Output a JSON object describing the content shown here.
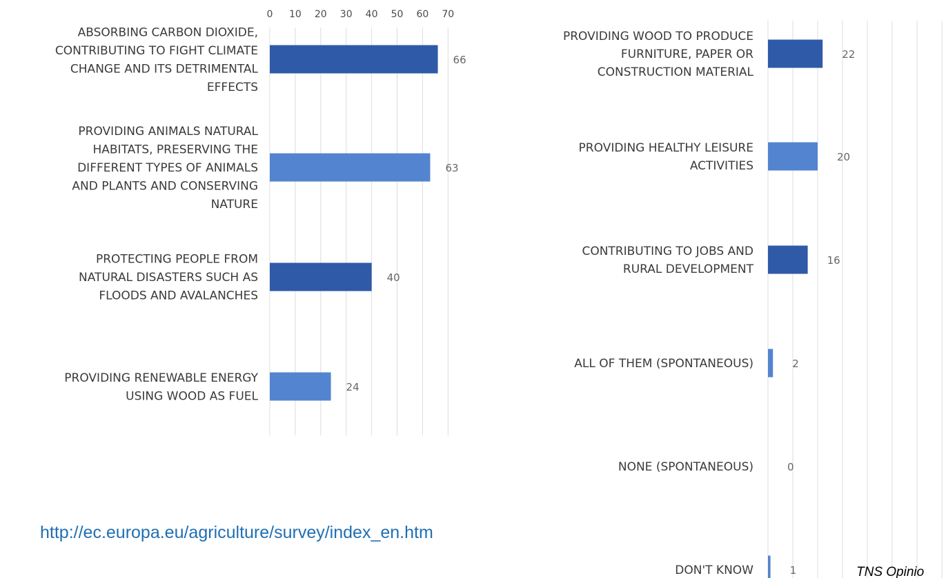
{
  "colors": {
    "dark_blue": "#2f5aa8",
    "light_blue": "#5384cf",
    "grid": "#dcdcdc"
  },
  "footer": {
    "url": "http://ec.europa.eu/agriculture/survey/index_en.htm",
    "credit": "TNS Opinio"
  },
  "chart_data": [
    {
      "type": "bar",
      "orientation": "horizontal",
      "title": "",
      "xlabel": "",
      "ylabel": "",
      "xlim": [
        0,
        70
      ],
      "x_ticks": [
        "0",
        "10",
        "20",
        "30",
        "40",
        "50",
        "60",
        "70"
      ],
      "grid": true,
      "categories": [
        [
          "ABSORBING CARBON DIOXIDE,",
          "CONTRIBUTING TO FIGHT CLIMATE",
          "CHANGE AND ITS DETRIMENTAL",
          "EFFECTS"
        ],
        [
          "PROVIDING ANIMALS NATURAL",
          "HABITATS, PRESERVING THE",
          "DIFFERENT TYPES OF ANIMALS",
          "AND PLANTS AND CONSERVING",
          "NATURE"
        ],
        [
          "PROTECTING PEOPLE FROM",
          "NATURAL DISASTERS SUCH AS",
          "FLOODS AND AVALANCHES"
        ],
        [
          "PROVIDING RENEWABLE ENERGY",
          "USING WOOD AS FUEL"
        ]
      ],
      "values": [
        66,
        63,
        40,
        24
      ],
      "value_labels": [
        "66",
        "63",
        "40",
        "24"
      ],
      "bar_colors": [
        "#2f5aa8",
        "#5384cf",
        "#2f5aa8",
        "#5384cf"
      ]
    },
    {
      "type": "bar",
      "orientation": "horizontal",
      "title": "",
      "xlabel": "",
      "ylabel": "",
      "xlim": [
        0,
        70
      ],
      "grid": true,
      "categories": [
        [
          "PROVIDING WOOD TO PRODUCE",
          "FURNITURE, PAPER OR",
          "CONSTRUCTION MATERIAL"
        ],
        [
          "PROVIDING HEALTHY LEISURE",
          "ACTIVITIES"
        ],
        [
          "CONTRIBUTING TO JOBS AND",
          "RURAL DEVELOPMENT"
        ],
        [
          "ALL OF THEM (SPONTANEOUS)"
        ],
        [
          "NONE (SPONTANEOUS)"
        ],
        [
          "DON'T KNOW"
        ]
      ],
      "values": [
        22,
        20,
        16,
        2,
        0,
        1
      ],
      "value_labels": [
        "22",
        "20",
        "16",
        "2",
        "0",
        "1"
      ],
      "bar_colors": [
        "#2f5aa8",
        "#5384cf",
        "#2f5aa8",
        "#5384cf",
        "#2f5aa8",
        "#5384cf"
      ]
    }
  ]
}
